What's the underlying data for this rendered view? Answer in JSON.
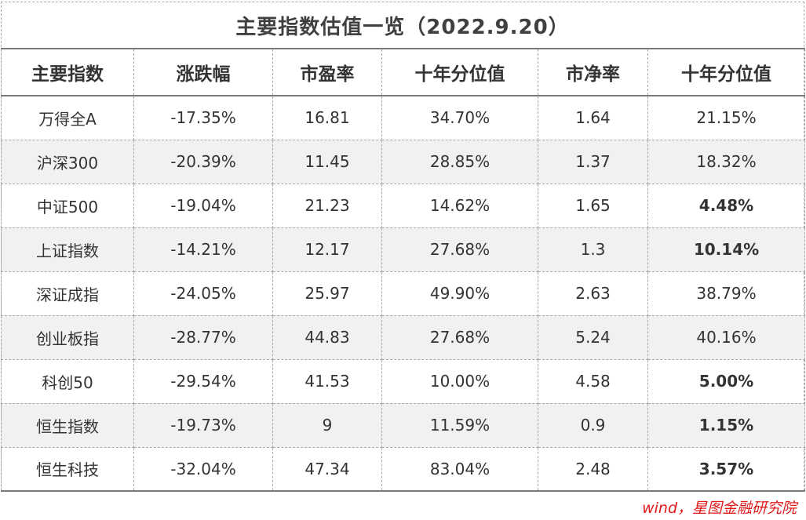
{
  "title": "主要指数估值一览（2022.9.20）",
  "table": {
    "headers": [
      "主要指数",
      "涨跌幅",
      "市盈率",
      "十年分位值",
      "市净率",
      "十年分位值"
    ],
    "rows": [
      {
        "name": "万得全A",
        "change": "-17.35%",
        "pe": "16.81",
        "pe_pct": "34.70%",
        "pb": "1.64",
        "pb_pct": "21.15%",
        "pb_pct_bold": false
      },
      {
        "name": "沪深300",
        "change": "-20.39%",
        "pe": "11.45",
        "pe_pct": "28.85%",
        "pb": "1.37",
        "pb_pct": "18.32%",
        "pb_pct_bold": false
      },
      {
        "name": "中证500",
        "change": "-19.04%",
        "pe": "21.23",
        "pe_pct": "14.62%",
        "pb": "1.65",
        "pb_pct": "4.48%",
        "pb_pct_bold": true
      },
      {
        "name": "上证指数",
        "change": "-14.21%",
        "pe": "12.17",
        "pe_pct": "27.68%",
        "pb": "1.3",
        "pb_pct": "10.14%",
        "pb_pct_bold": true
      },
      {
        "name": "深证成指",
        "change": "-24.05%",
        "pe": "25.97",
        "pe_pct": "49.90%",
        "pb": "2.63",
        "pb_pct": "38.79%",
        "pb_pct_bold": false
      },
      {
        "name": "创业板指",
        "change": "-28.77%",
        "pe": "44.83",
        "pe_pct": "27.68%",
        "pb": "5.24",
        "pb_pct": "40.16%",
        "pb_pct_bold": false
      },
      {
        "name": "科创50",
        "change": "-29.54%",
        "pe": "41.53",
        "pe_pct": "10.00%",
        "pb": "4.58",
        "pb_pct": "5.00%",
        "pb_pct_bold": true
      },
      {
        "name": "恒生指数",
        "change": "-19.73%",
        "pe": "9",
        "pe_pct": "11.59%",
        "pb": "0.9",
        "pb_pct": "1.15%",
        "pb_pct_bold": true
      },
      {
        "name": "恒生科技",
        "change": "-32.04%",
        "pe": "47.34",
        "pe_pct": "83.04%",
        "pb": "2.48",
        "pb_pct": "3.57%",
        "pb_pct_bold": true
      }
    ]
  },
  "source": "wind，星图金融研究院",
  "colors": {
    "source_text": "#e01919",
    "stripe": "#f1f1f1",
    "rule": "#7a7a7a"
  }
}
